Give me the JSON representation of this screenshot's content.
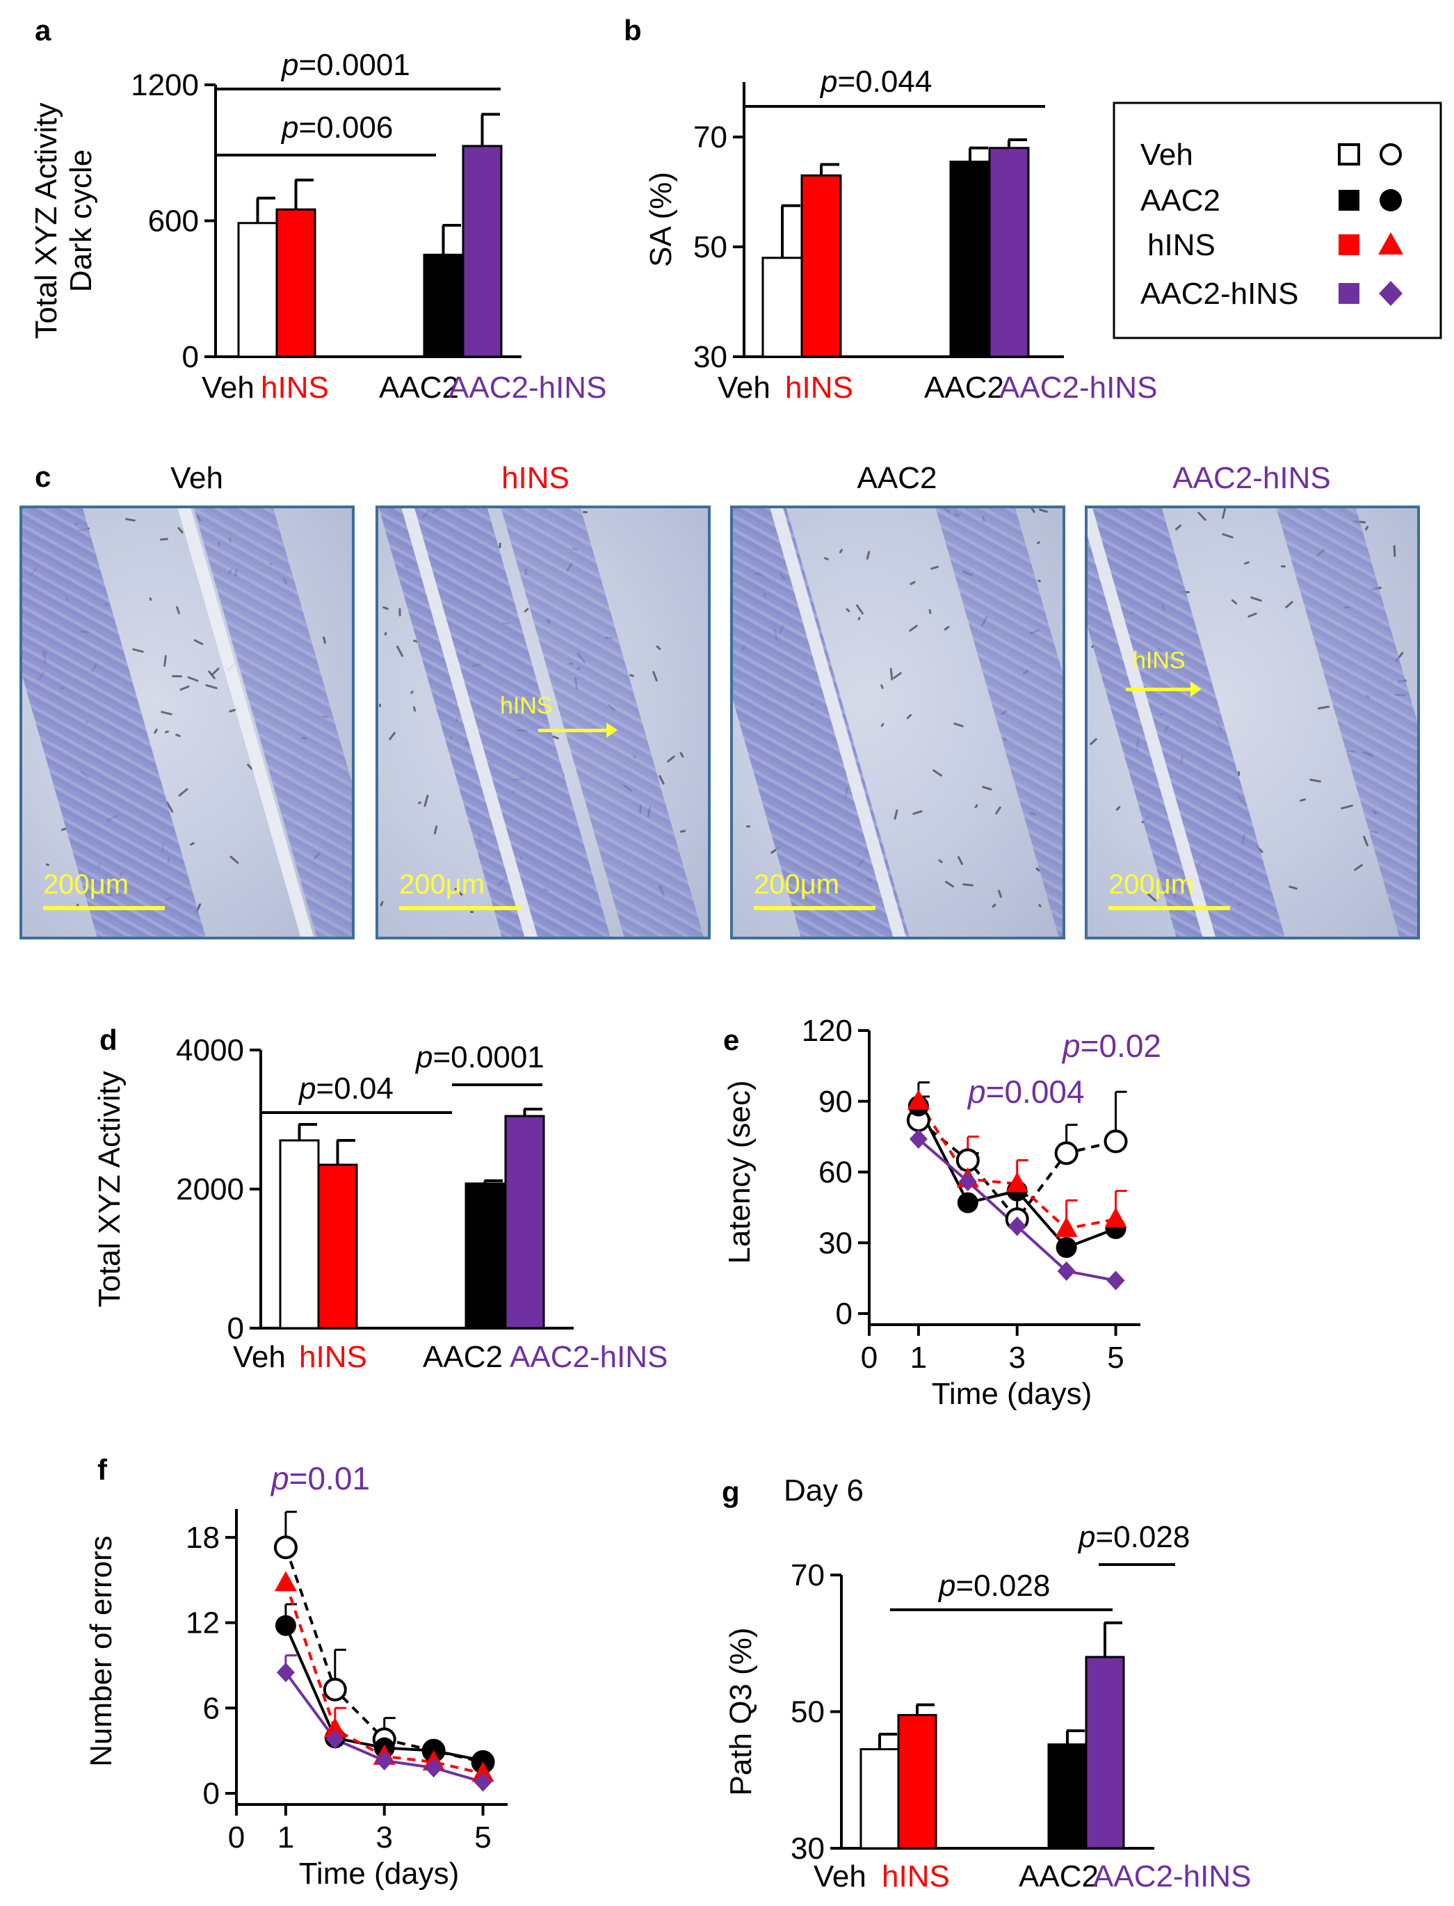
{
  "colors": {
    "veh": "#ffffff",
    "aac2": "#000000",
    "hins": "#ff0000",
    "combo": "#7030a0",
    "axis": "#000000",
    "scale": "#ffff33"
  },
  "legend": {
    "items": [
      {
        "label": "Veh",
        "color": "#ffffff"
      },
      {
        "label": "AAC2",
        "color": "#000000"
      },
      {
        "label": "hINS",
        "color": "#ff0000"
      },
      {
        "label": "AAC2-hINS",
        "color": "#7030a0"
      }
    ]
  },
  "micrographs": {
    "letter": "c",
    "panels": [
      {
        "title": "Veh",
        "title_color": "#000000",
        "scale_label": "200μm",
        "arrow_label": ""
      },
      {
        "title": "hINS",
        "title_color": "#ff0000",
        "scale_label": "200μm",
        "arrow_label": "hINS"
      },
      {
        "title": "AAC2",
        "title_color": "#000000",
        "scale_label": "200μm",
        "arrow_label": ""
      },
      {
        "title": "AAC2-hINS",
        "title_color": "#7030a0",
        "scale_label": "200μm",
        "arrow_label": "hINS"
      }
    ]
  },
  "chart_data": [
    {
      "panel": "a",
      "type": "bar",
      "ylabel": "Total XYZ Activity\nDark cycle",
      "xlabel": "",
      "ylim": [
        0,
        1200
      ],
      "yticks": [
        0,
        600,
        1200
      ],
      "categories": [
        "Veh",
        "hINS",
        "AAC2",
        "AAC2-hINS"
      ],
      "category_colors": [
        "#000000",
        "#ff0000",
        "#000000",
        "#7030a0"
      ],
      "bar_colors": [
        "#ffffff",
        "#ff0000",
        "#000000",
        "#7030a0"
      ],
      "values": [
        590,
        650,
        450,
        930
      ],
      "errors": [
        110,
        130,
        130,
        140
      ],
      "annotations": [
        {
          "p": "=0.0001",
          "from": 0,
          "to": 3,
          "y": 1180
        },
        {
          "p": "=0.006",
          "from": 0,
          "to": 2,
          "y": 900
        }
      ]
    },
    {
      "panel": "b",
      "type": "bar",
      "ylabel": "SA (%)",
      "xlabel": "",
      "ylim": [
        30,
        80
      ],
      "yticks": [
        30,
        50,
        70
      ],
      "categories": [
        "Veh",
        "hINS",
        "AAC2",
        "AAC2-hINS"
      ],
      "category_colors": [
        "#000000",
        "#ff0000",
        "#000000",
        "#7030a0"
      ],
      "bar_colors": [
        "#ffffff",
        "#ff0000",
        "#000000",
        "#7030a0"
      ],
      "values": [
        48,
        63,
        65.5,
        68
      ],
      "errors": [
        9.5,
        2.0,
        2.5,
        1.5
      ],
      "annotations": [
        {
          "p": "=0.044",
          "from": 0,
          "to": 2.5,
          "y": 76
        }
      ]
    },
    {
      "panel": "d",
      "type": "bar",
      "ylabel": "Total XYZ  Activity",
      "xlabel": "",
      "ylim": [
        0,
        4000
      ],
      "yticks": [
        0,
        2000,
        4000
      ],
      "categories": [
        "Veh",
        "hINS",
        "AAC2",
        "AAC2-hINS"
      ],
      "category_colors": [
        "#000000",
        "#ff0000",
        "#000000",
        "#7030a0"
      ],
      "bar_colors": [
        "#ffffff",
        "#ff0000",
        "#000000",
        "#7030a0"
      ],
      "values": [
        2700,
        2350,
        2080,
        3050
      ],
      "errors": [
        230,
        350,
        40,
        100
      ],
      "annotations": [
        {
          "p": "=0.04",
          "from": 0,
          "to": 2.3,
          "y": 3520
        },
        {
          "p": "=0.0001",
          "from": 2.3,
          "to": 3.2,
          "y": 3520
        }
      ]
    },
    {
      "panel": "e",
      "type": "line",
      "ylabel": "Latency (sec)",
      "xlabel": "Time (days)",
      "xlim": [
        0,
        5.5
      ],
      "xticks": [
        0,
        1,
        3,
        5
      ],
      "ylim": [
        0,
        120
      ],
      "yticks": [
        0,
        30,
        60,
        90,
        120
      ],
      "x": [
        1,
        2,
        3,
        4,
        5
      ],
      "series": [
        {
          "name": "Veh",
          "values": [
            82,
            65,
            40,
            68,
            73
          ],
          "errors": [
            10,
            3,
            10,
            12,
            21
          ],
          "color": "#000000",
          "marker": "circle-open",
          "dash": true
        },
        {
          "name": "AAC2",
          "values": [
            88,
            47,
            52,
            28,
            36
          ],
          "errors": [
            10,
            0,
            0,
            0,
            0
          ],
          "color": "#000000",
          "marker": "circle",
          "dash": false
        },
        {
          "name": "hINS",
          "values": [
            90,
            57,
            55,
            36,
            40
          ],
          "errors": [
            0,
            18,
            10,
            12,
            12
          ],
          "color": "#ff0000",
          "marker": "triangle",
          "dash": true
        },
        {
          "name": "AAC2-hINS",
          "values": [
            74,
            56,
            37,
            18,
            14
          ],
          "errors": [
            0,
            0,
            0,
            0,
            0
          ],
          "color": "#7030a0",
          "marker": "diamond",
          "dash": false
        }
      ],
      "annotations": [
        {
          "p": "=0.02",
          "color": "#7030a0"
        },
        {
          "p": "=0.004",
          "color": "#7030a0"
        }
      ]
    },
    {
      "panel": "f",
      "type": "line",
      "ylabel": "Number of errors",
      "xlabel": "Time (days)",
      "xlim": [
        0,
        5.5
      ],
      "xticks": [
        0,
        1,
        3,
        5
      ],
      "ylim": [
        0,
        20
      ],
      "yticks": [
        0,
        6,
        12,
        18
      ],
      "x": [
        1,
        2,
        3,
        4,
        5
      ],
      "series": [
        {
          "name": "Veh",
          "values": [
            17.3,
            7.3,
            3.8,
            3.0,
            2.2
          ],
          "errors": [
            2.5,
            2.8,
            1.5,
            0,
            0
          ],
          "color": "#000000",
          "marker": "circle-open",
          "dash": true
        },
        {
          "name": "AAC2",
          "values": [
            11.8,
            3.9,
            3.2,
            3.0,
            2.3
          ],
          "errors": [
            1.5,
            0,
            0,
            0,
            0
          ],
          "color": "#000000",
          "marker": "circle",
          "dash": false
        },
        {
          "name": "hINS",
          "values": [
            14.8,
            4.5,
            2.6,
            2.2,
            1.4
          ],
          "errors": [
            0,
            1.5,
            1.0,
            0,
            0
          ],
          "color": "#ff0000",
          "marker": "triangle",
          "dash": true
        },
        {
          "name": "AAC2-hINS",
          "values": [
            8.5,
            3.8,
            2.3,
            1.8,
            0.8
          ],
          "errors": [
            1.2,
            0,
            0,
            0,
            0
          ],
          "color": "#7030a0",
          "marker": "diamond",
          "dash": false
        }
      ],
      "annotations": [
        {
          "p": "=0.01",
          "color": "#7030a0"
        }
      ]
    },
    {
      "panel": "g",
      "type": "bar",
      "title": "Day 6",
      "ylabel": "Path Q3 (%)",
      "xlabel": "",
      "ylim": [
        30,
        70
      ],
      "yticks": [
        30,
        50,
        70
      ],
      "categories": [
        "Veh",
        "hINS",
        "AAC2",
        "AAC2-hINS"
      ],
      "category_colors": [
        "#000000",
        "#ff0000",
        "#000000",
        "#7030a0"
      ],
      "bar_colors": [
        "#ffffff",
        "#ff0000",
        "#000000",
        "#7030a0"
      ],
      "values": [
        44.5,
        49.5,
        45.2,
        58
      ],
      "errors": [
        2.2,
        1.5,
        2.0,
        5.0
      ],
      "annotations": [
        {
          "p": "=0.028",
          "from": 0,
          "to": 2.3,
          "y": 68
        },
        {
          "p": "=0.028",
          "from": 3.0,
          "to": 3.4,
          "y": 75
        }
      ]
    }
  ]
}
